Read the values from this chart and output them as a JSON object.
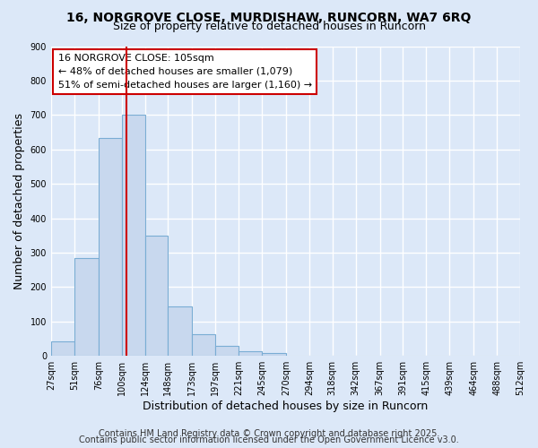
{
  "title": "16, NORGROVE CLOSE, MURDISHAW, RUNCORN, WA7 6RQ",
  "subtitle": "Size of property relative to detached houses in Runcorn",
  "xlabel": "Distribution of detached houses by size in Runcorn",
  "ylabel": "Number of detached properties",
  "bar_color": "#c8d8ee",
  "bar_edge_color": "#7aadd4",
  "bin_edges": [
    27,
    51,
    76,
    100,
    124,
    148,
    173,
    197,
    221,
    245,
    270,
    294,
    318,
    342,
    367,
    391,
    415,
    439,
    464,
    488,
    512
  ],
  "bar_heights": [
    43,
    285,
    632,
    700,
    350,
    145,
    63,
    30,
    13,
    8,
    0,
    0,
    0,
    1,
    0,
    0,
    0,
    0,
    0,
    0
  ],
  "tick_labels": [
    "27sqm",
    "51sqm",
    "76sqm",
    "100sqm",
    "124sqm",
    "148sqm",
    "173sqm",
    "197sqm",
    "221sqm",
    "245sqm",
    "270sqm",
    "294sqm",
    "318sqm",
    "342sqm",
    "367sqm",
    "391sqm",
    "415sqm",
    "439sqm",
    "464sqm",
    "488sqm",
    "512sqm"
  ],
  "vline_x": 105,
  "vline_color": "#cc0000",
  "annotation_line1": "16 NORGROVE CLOSE: 105sqm",
  "annotation_line2": "← 48% of detached houses are smaller (1,079)",
  "annotation_line3": "51% of semi-detached houses are larger (1,160) →",
  "ylim": [
    0,
    900
  ],
  "yticks": [
    0,
    100,
    200,
    300,
    400,
    500,
    600,
    700,
    800,
    900
  ],
  "footer_line1": "Contains HM Land Registry data © Crown copyright and database right 2025.",
  "footer_line2": "Contains public sector information licensed under the Open Government Licence v3.0.",
  "background_color": "#dce8f8",
  "grid_color": "#ffffff",
  "title_fontsize": 10,
  "subtitle_fontsize": 9,
  "axis_label_fontsize": 9,
  "tick_fontsize": 7,
  "annotation_fontsize": 8,
  "footer_fontsize": 7
}
